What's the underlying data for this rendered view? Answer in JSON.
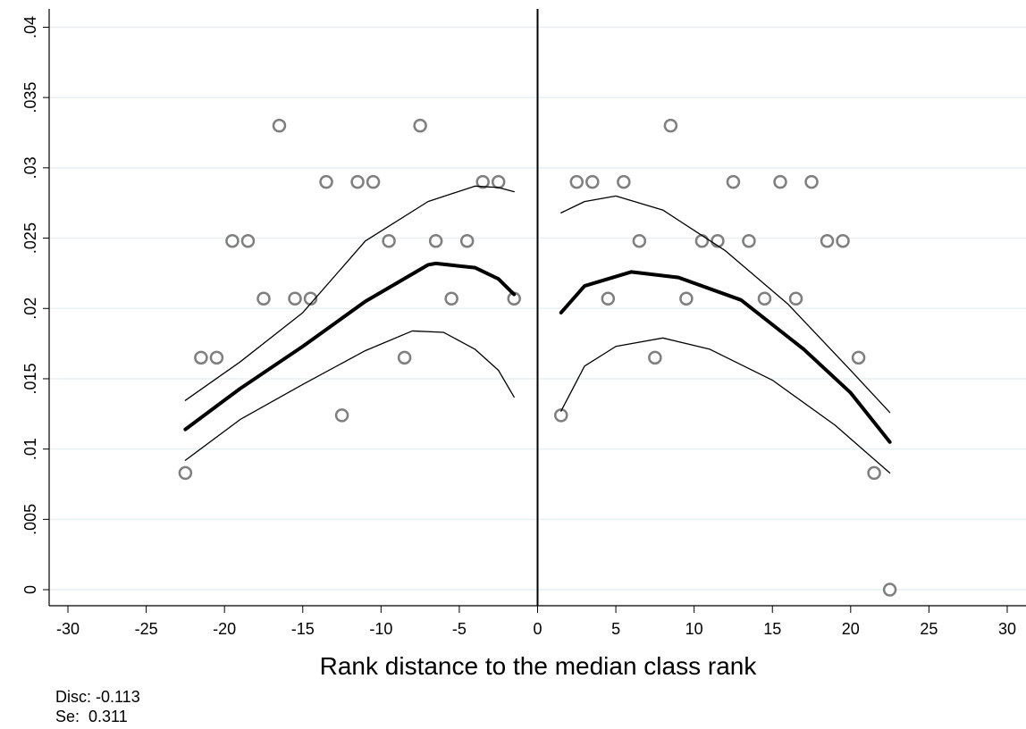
{
  "chart_data": {
    "type": "scatter",
    "xlabel": "Rank distance to the median class rank",
    "annotations": [
      "Disc: -0.113",
      "Se:  0.311"
    ],
    "xlim": [
      -31.2,
      31.2
    ],
    "ylim": [
      -0.00114,
      0.0413
    ],
    "xticks": [
      -30,
      -25,
      -20,
      -15,
      -10,
      -5,
      0,
      5,
      10,
      15,
      20,
      25,
      30
    ],
    "yticks": [
      0,
      {
        "value": 0.005,
        "label": ".005"
      },
      {
        "value": 0.01,
        "label": ".01"
      },
      {
        "value": 0.015,
        "label": ".015"
      },
      {
        "value": 0.02,
        "label": ".02"
      },
      {
        "value": 0.025,
        "label": ".025"
      },
      {
        "value": 0.03,
        "label": ".03"
      },
      {
        "value": 0.035,
        "label": ".035"
      },
      {
        "value": 0.04,
        "label": ".04"
      }
    ],
    "grid": true,
    "vline": 0,
    "series": [
      {
        "mode": "points",
        "color": "#7f7f7f",
        "x": [
          -22.5,
          -21.5,
          -20.5,
          -19.5,
          -18.5,
          -17.5,
          -16.5,
          -15.5,
          -14.5,
          -13.5,
          -12.5,
          -11.5,
          -10.5,
          -9.5,
          -8.5,
          -7.5,
          -6.5,
          -5.5,
          -4.5,
          -3.5,
          -2.5,
          -1.5,
          1.5,
          2.5,
          3.5,
          4.5,
          5.5,
          6.5,
          7.5,
          8.5,
          9.5,
          10.5,
          11.5,
          12.5,
          13.5,
          14.5,
          15.5,
          16.5,
          17.5,
          18.5,
          19.5,
          20.5,
          21.5,
          22.5
        ],
        "values": [
          0.0083,
          0.0165,
          0.0165,
          0.0248,
          0.0248,
          0.0207,
          0.033,
          0.0207,
          0.0207,
          0.029,
          0.0124,
          0.029,
          0.029,
          0.0248,
          0.0165,
          0.033,
          0.0248,
          0.0207,
          0.0248,
          0.029,
          0.029,
          0.0207,
          0.0124,
          0.029,
          0.029,
          0.0207,
          0.029,
          0.0248,
          0.0165,
          0.033,
          0.0207,
          0.0248,
          0.0248,
          0.029,
          0.0248,
          0.0207,
          0.029,
          0.0207,
          0.029,
          0.0248,
          0.0248,
          0.0165,
          0.0083,
          0
        ]
      },
      {
        "mode": "line",
        "color": "#000000",
        "width": 4,
        "x": [
          -22.5,
          -19,
          -15,
          -11,
          -7,
          -6.5,
          -4,
          -2.5,
          -1.5
        ],
        "values": [
          0.0114,
          0.0143,
          0.0173,
          0.0205,
          0.0231,
          0.0232,
          0.0229,
          0.0221,
          0.021
        ]
      },
      {
        "mode": "line",
        "color": "#000000",
        "width": 1.3,
        "x": [
          -22.5,
          -19,
          -15,
          -11,
          -7,
          -4,
          -2.5,
          -1.5
        ],
        "values": [
          0.01346,
          0.0162,
          0.0197,
          0.0248,
          0.0276,
          0.0287,
          0.0286,
          0.0283
        ]
      },
      {
        "mode": "line",
        "color": "#000000",
        "width": 1.3,
        "x": [
          -22.5,
          -19,
          -15,
          -11,
          -8,
          -6,
          -4,
          -2.5,
          -1.5
        ],
        "values": [
          0.0092,
          0.0121,
          0.0146,
          0.017,
          0.0184,
          0.0183,
          0.0171,
          0.0156,
          0.0137
        ]
      },
      {
        "mode": "line",
        "color": "#000000",
        "width": 4,
        "x": [
          1.5,
          3,
          6,
          9,
          13,
          17,
          20,
          22.5
        ],
        "values": [
          0.0197,
          0.0216,
          0.0226,
          0.0222,
          0.0206,
          0.0171,
          0.014,
          0.0105
        ]
      },
      {
        "mode": "line",
        "color": "#000000",
        "width": 1.3,
        "x": [
          1.5,
          3,
          5,
          8,
          12,
          16,
          20,
          22.5
        ],
        "values": [
          0.0268,
          0.0276,
          0.028,
          0.027,
          0.0241,
          0.0203,
          0.0156,
          0.0126
        ]
      },
      {
        "mode": "line",
        "color": "#000000",
        "width": 1.3,
        "x": [
          1.5,
          3,
          5,
          8,
          11,
          15,
          19,
          22.5
        ],
        "values": [
          0.0127,
          0.0159,
          0.0173,
          0.0179,
          0.0171,
          0.0149,
          0.0117,
          0.0083
        ]
      }
    ]
  }
}
